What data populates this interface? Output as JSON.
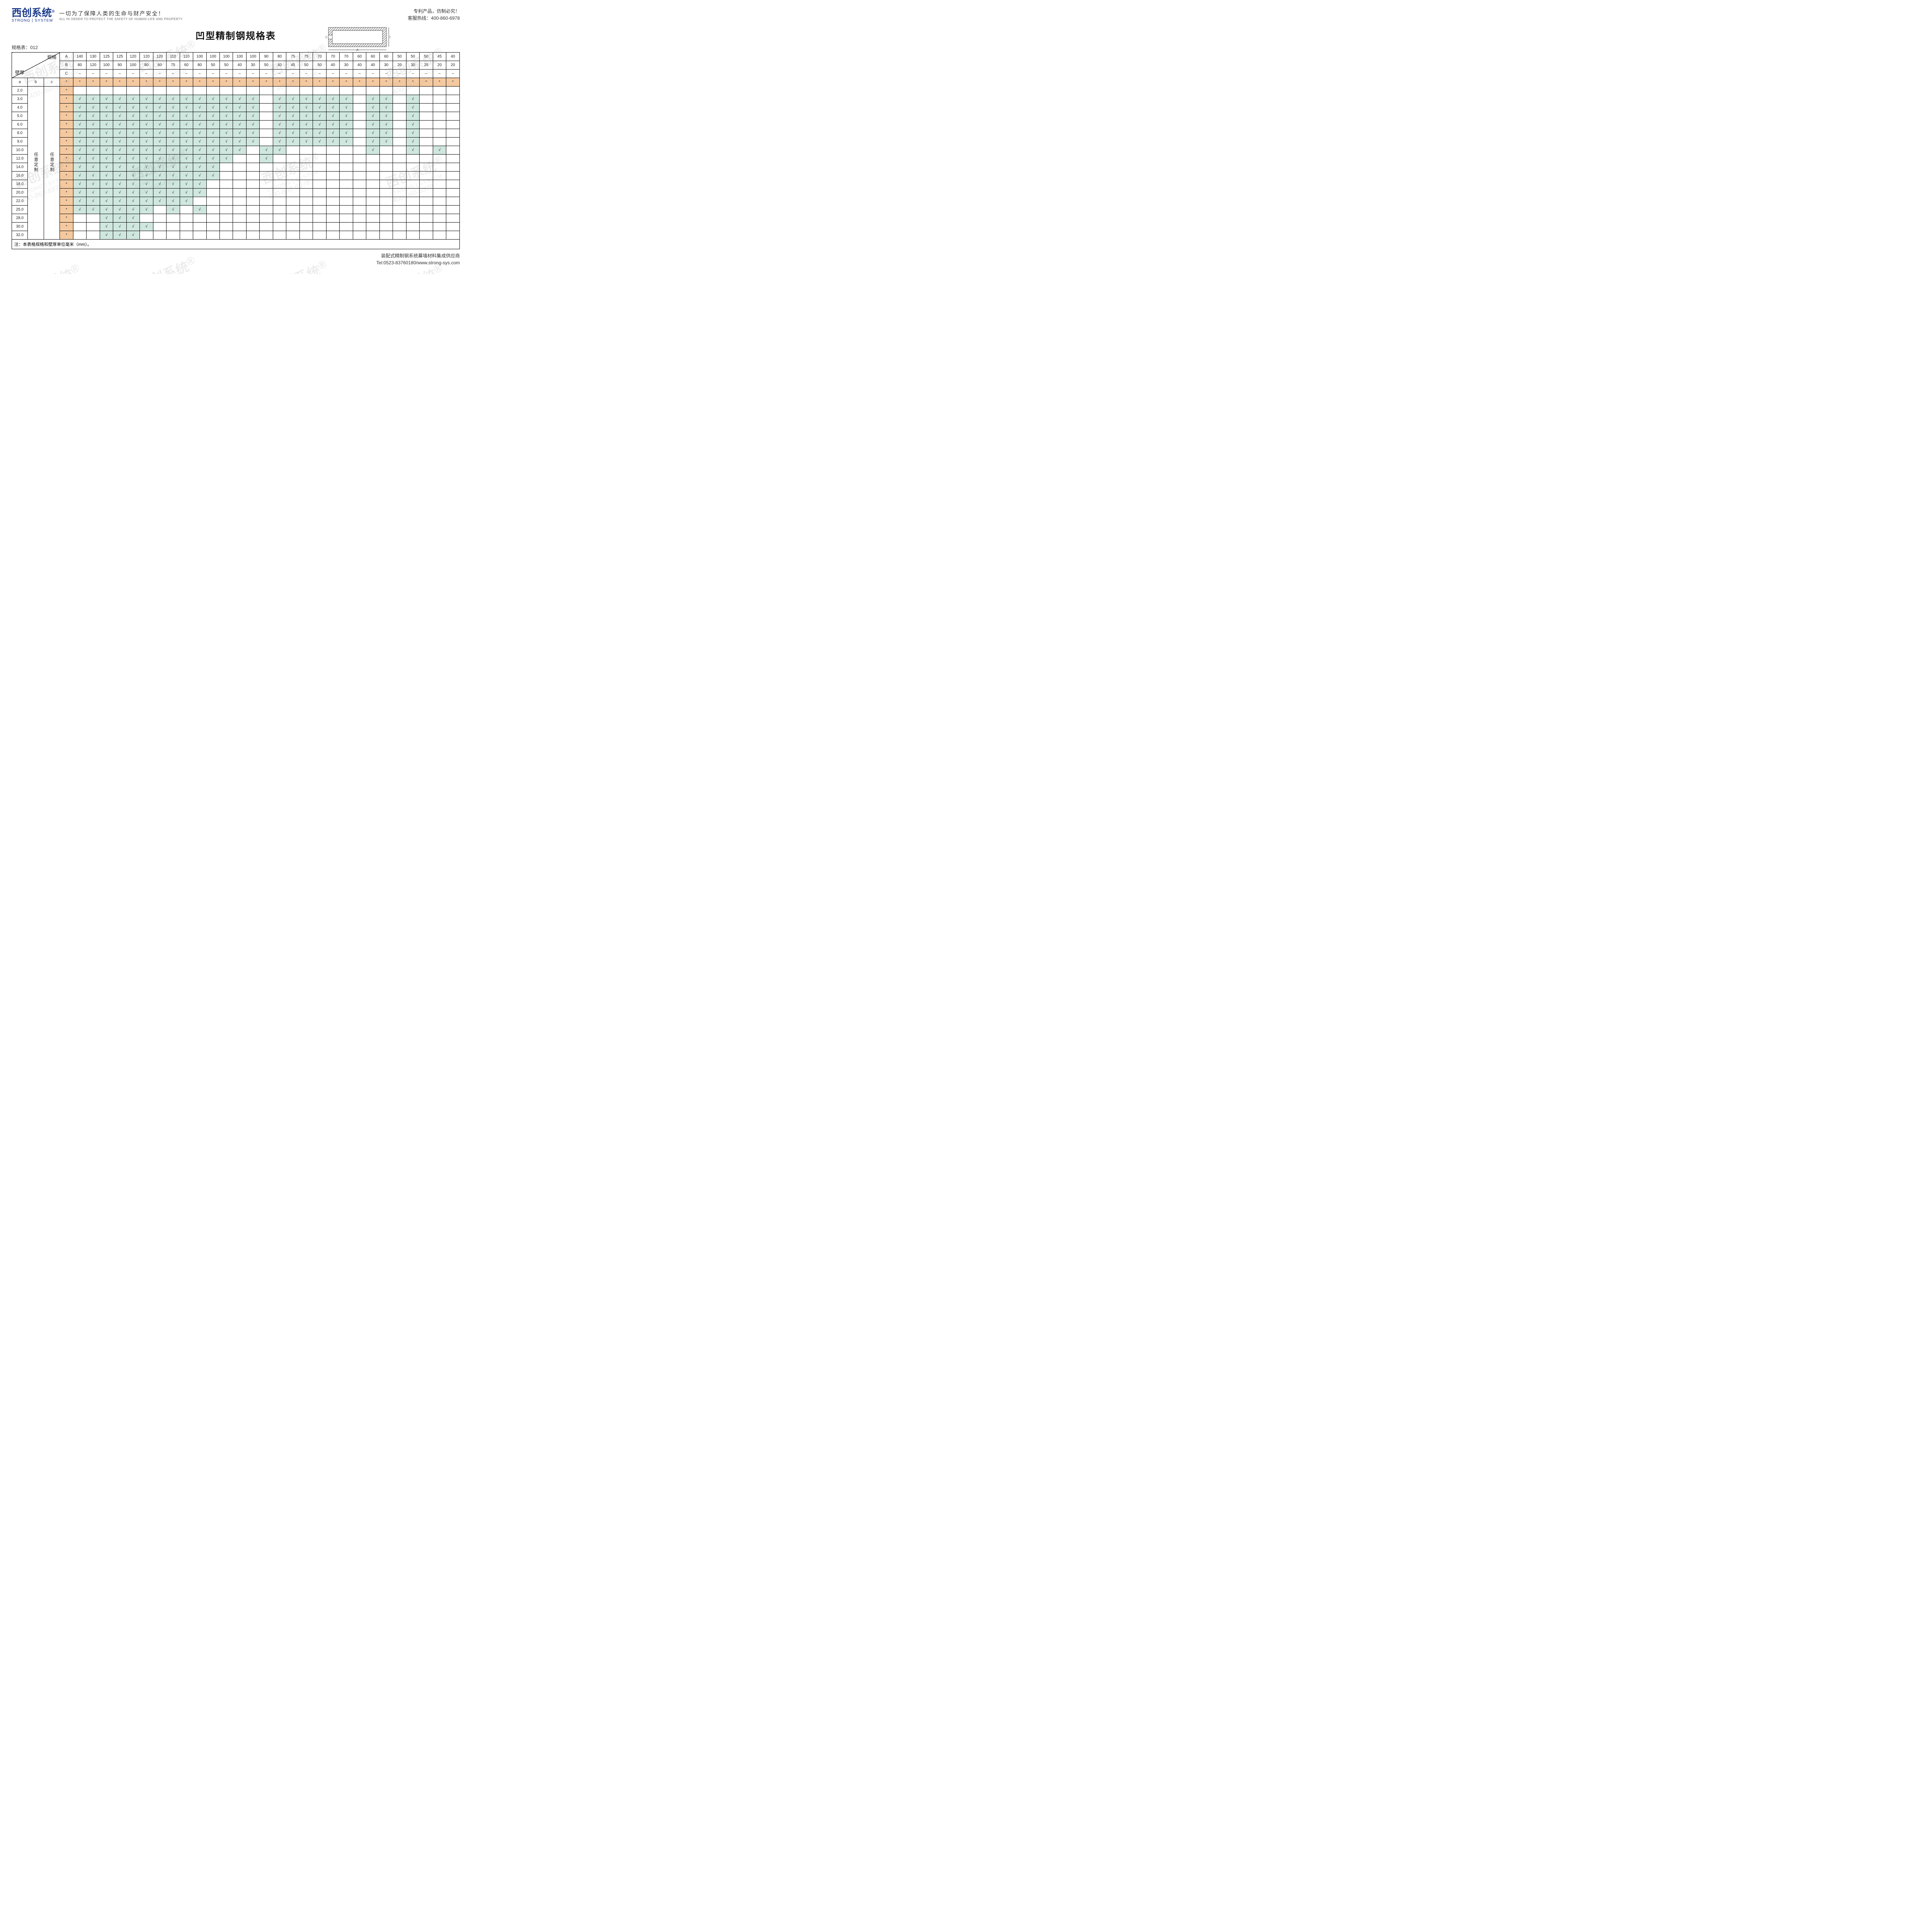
{
  "colors": {
    "brand": "#1a3a8a",
    "star_bg": "#f5c9a0",
    "check_bg": "#cfe7df",
    "border": "#000000",
    "text": "#222222",
    "bg": "#ffffff"
  },
  "header": {
    "logo_main": "西创系统",
    "logo_r": "®",
    "logo_sub": "STRONG | SYSTEM",
    "slogan_cn": "一切为了保障人类的生命与财产安全！",
    "slogan_en": "ALL IN ORDER TO PROTECT THE SAFETY OF HUMAN LIFE AND PROPERTY",
    "right1": "专利产品，仿制必究！",
    "right2": "客服热线：400-860-6978"
  },
  "title": "凹型精制钢规格表",
  "spec_code": "规格表：012",
  "table_header": {
    "diag_top": "规格",
    "diag_bottom": "壁厚",
    "abc": [
      "a",
      "b",
      "c"
    ],
    "ABC": [
      "A",
      "B",
      "C"
    ],
    "b_text": "任意定制",
    "c_text": "任意定制",
    "A_values": [
      "140",
      "130",
      "125",
      "125",
      "120",
      "120",
      "120",
      "110",
      "110",
      "100",
      "100",
      "100",
      "100",
      "100",
      "90",
      "80",
      "75",
      "75",
      "70",
      "70",
      "70",
      "60",
      "60",
      "60",
      "50",
      "50",
      "50",
      "45",
      "40"
    ],
    "B_values": [
      "80",
      "120",
      "100",
      "90",
      "100",
      "80",
      "60",
      "75",
      "60",
      "80",
      "50",
      "50",
      "40",
      "30",
      "50",
      "40",
      "45",
      "50",
      "50",
      "40",
      "30",
      "40",
      "40",
      "30",
      "20",
      "30",
      "25",
      "20",
      "20"
    ],
    "C_dash": "–"
  },
  "symbols": {
    "star": "*",
    "check": "√"
  },
  "thicknesses": [
    "2.0",
    "3.0",
    "4.0",
    "5.0",
    "6.0",
    "8.0",
    "9.0",
    "10.0",
    "12.0",
    "14.0",
    "16.0",
    "18.0",
    "20.0",
    "22.0",
    "25.0",
    "28.0",
    "30.0",
    "32.0"
  ],
  "grid": [
    [
      0,
      0,
      0,
      0,
      0,
      0,
      0,
      0,
      0,
      0,
      0,
      0,
      0,
      0,
      0,
      0,
      0,
      0,
      0,
      0,
      0,
      0,
      0,
      0,
      0,
      0,
      0,
      0,
      0
    ],
    [
      1,
      1,
      1,
      1,
      1,
      1,
      1,
      1,
      1,
      1,
      1,
      1,
      1,
      1,
      0,
      1,
      1,
      1,
      1,
      1,
      1,
      0,
      1,
      1,
      0,
      1,
      0,
      0,
      0
    ],
    [
      1,
      1,
      1,
      1,
      1,
      1,
      1,
      1,
      1,
      1,
      1,
      1,
      1,
      1,
      0,
      1,
      1,
      1,
      1,
      1,
      1,
      0,
      1,
      1,
      0,
      1,
      0,
      0,
      0
    ],
    [
      1,
      1,
      1,
      1,
      1,
      1,
      1,
      1,
      1,
      1,
      1,
      1,
      1,
      1,
      0,
      1,
      1,
      1,
      1,
      1,
      1,
      0,
      1,
      1,
      0,
      1,
      0,
      0,
      0
    ],
    [
      1,
      1,
      1,
      1,
      1,
      1,
      1,
      1,
      1,
      1,
      1,
      1,
      1,
      1,
      0,
      1,
      1,
      1,
      1,
      1,
      1,
      0,
      1,
      1,
      0,
      1,
      0,
      0,
      0
    ],
    [
      1,
      1,
      1,
      1,
      1,
      1,
      1,
      1,
      1,
      1,
      1,
      1,
      1,
      1,
      0,
      1,
      1,
      1,
      1,
      1,
      1,
      0,
      1,
      1,
      0,
      1,
      0,
      0,
      0
    ],
    [
      1,
      1,
      1,
      1,
      1,
      1,
      1,
      1,
      1,
      1,
      1,
      1,
      1,
      1,
      0,
      1,
      1,
      1,
      1,
      1,
      1,
      0,
      1,
      1,
      0,
      1,
      0,
      0,
      0
    ],
    [
      1,
      1,
      1,
      1,
      1,
      1,
      1,
      1,
      1,
      1,
      1,
      1,
      1,
      0,
      1,
      1,
      0,
      0,
      0,
      0,
      0,
      0,
      1,
      0,
      0,
      1,
      0,
      1,
      0
    ],
    [
      1,
      1,
      1,
      1,
      1,
      1,
      1,
      1,
      1,
      1,
      1,
      1,
      0,
      0,
      1,
      0,
      0,
      0,
      0,
      0,
      0,
      0,
      0,
      0,
      0,
      0,
      0,
      0,
      0
    ],
    [
      1,
      1,
      1,
      1,
      1,
      1,
      1,
      1,
      1,
      1,
      1,
      0,
      0,
      0,
      0,
      0,
      0,
      0,
      0,
      0,
      0,
      0,
      0,
      0,
      0,
      0,
      0,
      0,
      0
    ],
    [
      1,
      1,
      1,
      1,
      1,
      1,
      1,
      1,
      1,
      1,
      1,
      0,
      0,
      0,
      0,
      0,
      0,
      0,
      0,
      0,
      0,
      0,
      0,
      0,
      0,
      0,
      0,
      0,
      0
    ],
    [
      1,
      1,
      1,
      1,
      1,
      1,
      1,
      1,
      1,
      1,
      0,
      0,
      0,
      0,
      0,
      0,
      0,
      0,
      0,
      0,
      0,
      0,
      0,
      0,
      0,
      0,
      0,
      0,
      0
    ],
    [
      1,
      1,
      1,
      1,
      1,
      1,
      1,
      1,
      1,
      1,
      0,
      0,
      0,
      0,
      0,
      0,
      0,
      0,
      0,
      0,
      0,
      0,
      0,
      0,
      0,
      0,
      0,
      0,
      0
    ],
    [
      1,
      1,
      1,
      1,
      1,
      1,
      1,
      1,
      1,
      0,
      0,
      0,
      0,
      0,
      0,
      0,
      0,
      0,
      0,
      0,
      0,
      0,
      0,
      0,
      0,
      0,
      0,
      0,
      0
    ],
    [
      1,
      1,
      1,
      1,
      1,
      1,
      0,
      1,
      0,
      1,
      0,
      0,
      0,
      0,
      0,
      0,
      0,
      0,
      0,
      0,
      0,
      0,
      0,
      0,
      0,
      0,
      0,
      0,
      0
    ],
    [
      0,
      0,
      1,
      1,
      1,
      0,
      0,
      0,
      0,
      0,
      0,
      0,
      0,
      0,
      0,
      0,
      0,
      0,
      0,
      0,
      0,
      0,
      0,
      0,
      0,
      0,
      0,
      0,
      0
    ],
    [
      0,
      0,
      1,
      1,
      1,
      1,
      0,
      0,
      0,
      0,
      0,
      0,
      0,
      0,
      0,
      0,
      0,
      0,
      0,
      0,
      0,
      0,
      0,
      0,
      0,
      0,
      0,
      0,
      0
    ],
    [
      0,
      0,
      1,
      1,
      1,
      0,
      0,
      0,
      0,
      0,
      0,
      0,
      0,
      0,
      0,
      0,
      0,
      0,
      0,
      0,
      0,
      0,
      0,
      0,
      0,
      0,
      0,
      0,
      0
    ]
  ],
  "footnote": "注：本表格规格和壁厚单位毫米（mm）。",
  "footer": {
    "line1": "装配式精制钢系统幕墙材料集成供应商",
    "line2": "Tel:0523-83760180/www.strong-sys.com"
  },
  "watermark": {
    "l1": "西创系统",
    "l2": "STRONG | SYSTEM",
    "l3": "400-860-6978"
  }
}
